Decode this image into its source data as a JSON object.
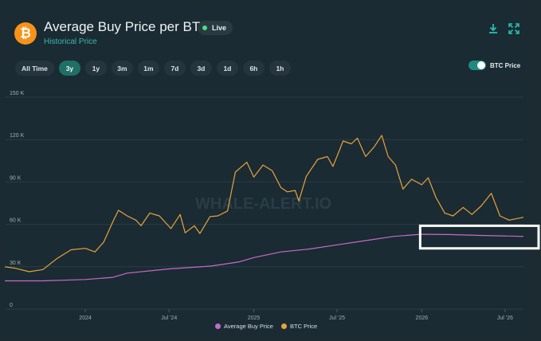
{
  "header": {
    "title": "Average Buy Price per BTC",
    "subtitle": "Historical Price",
    "live_label": "Live",
    "logo_glyph": "₿",
    "download_icon": "download-icon",
    "expand_icon": "expand-icon"
  },
  "timeframes": [
    "All Time",
    "3y",
    "1y",
    "3m",
    "1m",
    "7d",
    "3d",
    "1d",
    "6h",
    "1h"
  ],
  "active_timeframe": "3y",
  "toggle": {
    "label": "BTC Price",
    "on": true
  },
  "watermark": "WHALE-ALERT.IO",
  "colors": {
    "btc": "#e8a33c",
    "avg": "#c96ac8",
    "accent": "#26c0b0",
    "highlight_box": "#ffffff"
  },
  "chart_data": {
    "type": "line",
    "y_ticks": [
      "0",
      "30 K",
      "60 K",
      "90 K",
      "120 K",
      "150 K"
    ],
    "y_tick_values": [
      0,
      30000,
      60000,
      90000,
      120000,
      150000
    ],
    "ylim": [
      0,
      150000
    ],
    "x_ticks": [
      "2024",
      "Jul '24",
      "2025",
      "Jul '25",
      "2026",
      "Jul '26"
    ],
    "x_tick_values": [
      "2024-01-01",
      "2024-07-01",
      "2025-01-01",
      "2025-07-01",
      "2026-01-01",
      "2026-07-01"
    ],
    "xlim": [
      "2023-07-10",
      "2026-08-10"
    ],
    "series": [
      {
        "name": "Average Buy Price",
        "color": "#c96ac8",
        "x": [
          "2023-07-10",
          "2023-10-01",
          "2024-01-01",
          "2024-03-01",
          "2024-04-01",
          "2024-07-01",
          "2024-10-01",
          "2024-12-01",
          "2025-01-01",
          "2025-03-01",
          "2025-05-01",
          "2025-07-01",
          "2025-09-01",
          "2025-11-01",
          "2026-01-01",
          "2026-03-01",
          "2026-05-01",
          "2026-08-10"
        ],
        "values": [
          20000,
          20000,
          21000,
          22500,
          25500,
          28500,
          30500,
          33500,
          36500,
          40500,
          42500,
          45500,
          48500,
          51500,
          53000,
          52800,
          52200,
          51500
        ]
      },
      {
        "name": "BTC Price",
        "color": "#e8a33c",
        "x": [
          "2023-07-10",
          "2023-08-01",
          "2023-09-01",
          "2023-10-01",
          "2023-11-01",
          "2023-12-01",
          "2024-01-01",
          "2024-01-22",
          "2024-02-10",
          "2024-03-01",
          "2024-03-13",
          "2024-04-01",
          "2024-04-20",
          "2024-05-01",
          "2024-05-20",
          "2024-06-10",
          "2024-07-05",
          "2024-07-25",
          "2024-08-05",
          "2024-08-25",
          "2024-09-06",
          "2024-09-28",
          "2024-10-15",
          "2024-11-05",
          "2024-11-22",
          "2024-12-17",
          "2025-01-01",
          "2025-01-21",
          "2025-02-10",
          "2025-03-01",
          "2025-03-15",
          "2025-04-01",
          "2025-04-09",
          "2025-04-25",
          "2025-05-20",
          "2025-06-10",
          "2025-06-22",
          "2025-07-14",
          "2025-08-01",
          "2025-08-14",
          "2025-09-01",
          "2025-09-20",
          "2025-10-06",
          "2025-10-20",
          "2025-11-05",
          "2025-11-21",
          "2025-12-10",
          "2026-01-01",
          "2026-01-15",
          "2026-02-01",
          "2026-02-20",
          "2026-03-10",
          "2026-04-01",
          "2026-04-20",
          "2026-05-10",
          "2026-06-01",
          "2026-06-20",
          "2026-07-10",
          "2026-08-10"
        ],
        "values": [
          30000,
          29000,
          26500,
          28000,
          36000,
          42000,
          43000,
          40500,
          47500,
          62000,
          70000,
          66000,
          63000,
          59000,
          68000,
          66000,
          57000,
          67000,
          54000,
          59000,
          53500,
          65500,
          66000,
          69500,
          97000,
          104000,
          93500,
          102000,
          98000,
          86000,
          83000,
          84000,
          76500,
          94000,
          106000,
          108000,
          101000,
          119000,
          117000,
          121000,
          108000,
          115000,
          123000,
          108000,
          102000,
          85000,
          92000,
          88000,
          93000,
          79000,
          68000,
          66000,
          72000,
          67000,
          73000,
          82000,
          66000,
          63000,
          65000
        ]
      }
    ],
    "legend": [
      "Average Buy Price",
      "BTC Price"
    ],
    "legend_placement": "bottom",
    "grid": true
  }
}
